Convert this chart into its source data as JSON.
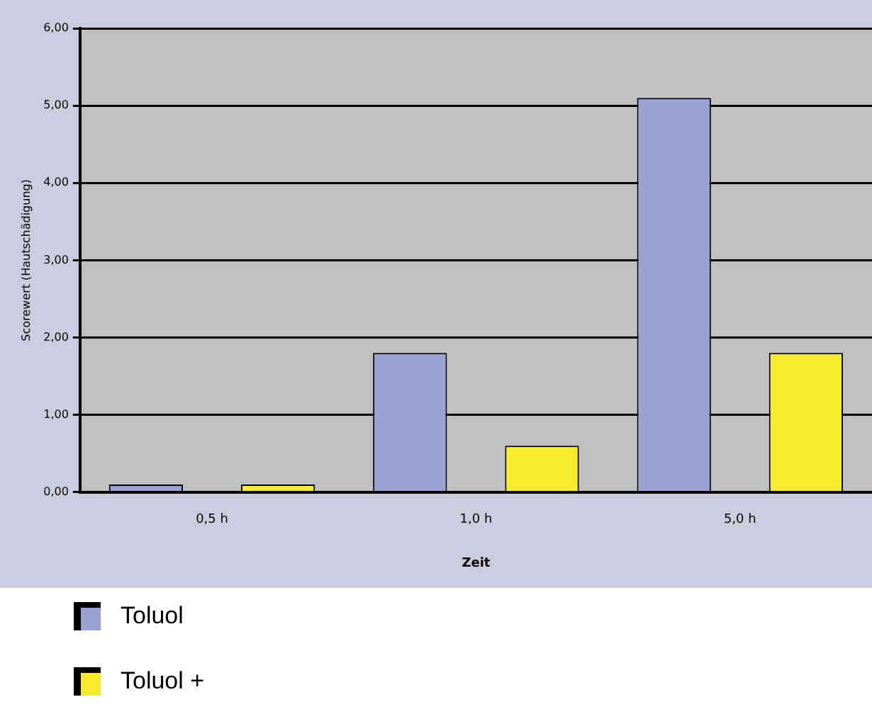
{
  "chart_data": {
    "type": "bar",
    "xlabel": "Zeit",
    "ylabel": "Scorewert (Hautschädigung)",
    "categories": [
      "0,5 h",
      "1,0 h",
      "5,0 h"
    ],
    "series": [
      {
        "name": "Toluol",
        "color": "#99a3d3",
        "values": [
          0.1,
          1.8,
          5.1
        ]
      },
      {
        "name": "Toluol +",
        "color": "#f8ea2c",
        "values": [
          0.1,
          0.6,
          1.8
        ]
      }
    ],
    "ylim": [
      0,
      6
    ],
    "yticks": [
      {
        "value": 0,
        "label": "0,00"
      },
      {
        "value": 1,
        "label": "1,00"
      },
      {
        "value": 2,
        "label": "2,00"
      },
      {
        "value": 3,
        "label": "3,00"
      },
      {
        "value": 4,
        "label": "4,00"
      },
      {
        "value": 5,
        "label": "5,00"
      },
      {
        "value": 6,
        "label": "6,00"
      }
    ],
    "grid": "y",
    "legend": "bottom"
  }
}
